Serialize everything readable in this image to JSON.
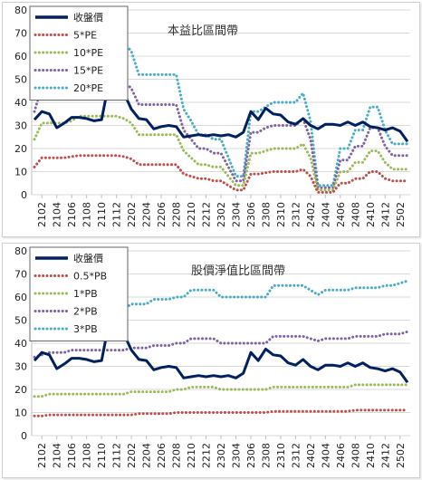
{
  "chart_data": [
    {
      "type": "line",
      "title": "本益比區間帶",
      "xlabel": "",
      "ylabel": "",
      "ylim": [
        0,
        80
      ],
      "yticks": [
        0,
        10,
        20,
        30,
        40,
        50,
        60,
        70,
        80
      ],
      "xtick_labels": [
        "2102",
        "2104",
        "2106",
        "2108",
        "2110",
        "2112",
        "2202",
        "2204",
        "2206",
        "2208",
        "2210",
        "2212",
        "2302",
        "2304",
        "2306",
        "2308",
        "2310",
        "2312",
        "2402",
        "2404",
        "2406",
        "2408",
        "2410",
        "2412",
        "2502"
      ],
      "grid": "horizontal",
      "legend_position": "top-left",
      "x": [
        "2101",
        "2102",
        "2103",
        "2104",
        "2105",
        "2106",
        "2107",
        "2108",
        "2109",
        "2110",
        "2111",
        "2112",
        "2201",
        "2202",
        "2203",
        "2204",
        "2205",
        "2206",
        "2207",
        "2208",
        "2209",
        "2210",
        "2211",
        "2212",
        "2301",
        "2302",
        "2303",
        "2304",
        "2305",
        "2306",
        "2307",
        "2308",
        "2309",
        "2310",
        "2311",
        "2312",
        "2401",
        "2402",
        "2403",
        "2404",
        "2405",
        "2406",
        "2407",
        "2408",
        "2409",
        "2410",
        "2411",
        "2412",
        "2501",
        "2502",
        "2503"
      ],
      "series": [
        {
          "name": "收盤價",
          "color": "#002060",
          "style": "solid",
          "values": [
            32.5,
            36,
            35,
            29,
            31,
            33.5,
            33.5,
            33,
            32,
            32.5,
            49,
            42,
            44,
            37,
            33,
            32.5,
            28.5,
            29.5,
            30,
            29.5,
            25,
            25.5,
            26,
            25.5,
            26,
            25.5,
            26,
            25,
            27,
            36,
            32.5,
            37.5,
            35,
            34.5,
            31.5,
            30.5,
            33,
            30,
            28.5,
            30.5,
            30.5,
            30,
            31.5,
            30,
            31.5,
            29.5,
            29,
            28,
            29,
            27.5,
            23
          ]
        },
        {
          "name": "5*PE",
          "color": "#c0504d",
          "style": "dotted",
          "values": [
            12,
            16,
            16,
            16,
            16,
            16.5,
            17,
            17,
            17,
            17,
            17,
            17,
            16.5,
            15.5,
            13,
            13,
            13,
            13,
            13,
            13,
            9,
            8,
            7,
            7,
            6,
            6,
            4,
            2,
            2,
            9,
            9,
            9.5,
            10,
            10,
            10,
            10,
            11,
            8,
            1,
            1,
            1,
            5,
            5,
            7,
            7,
            10,
            10,
            7,
            6,
            6,
            6
          ]
        },
        {
          "name": "10*PE",
          "color": "#9bbb59",
          "style": "dotted",
          "values": [
            24,
            31,
            31,
            31,
            31,
            32,
            34,
            34,
            34,
            34,
            34,
            34,
            33,
            31,
            26,
            26,
            26,
            26,
            26,
            26,
            19,
            16,
            13,
            13,
            12,
            12,
            8,
            4,
            4,
            18,
            18,
            19,
            20,
            20,
            20,
            20,
            22,
            16,
            2,
            2,
            2,
            10,
            10,
            14,
            14,
            19,
            19,
            14,
            11,
            11,
            11
          ]
        },
        {
          "name": "15*PE",
          "color": "#8064a2",
          "style": "dotted",
          "values": [
            36,
            47,
            47,
            47,
            47,
            48,
            51,
            51,
            51,
            51,
            51,
            51,
            49,
            46,
            39,
            39,
            39,
            39,
            39,
            39,
            28,
            24,
            20,
            20,
            18,
            18,
            12,
            6,
            6,
            27,
            27,
            29,
            30,
            30,
            30,
            30,
            33,
            24,
            3,
            3,
            3,
            15,
            15,
            21,
            21,
            29,
            29,
            21,
            17,
            17,
            17
          ]
        },
        {
          "name": "20*PE",
          "color": "#4bacc6",
          "style": "dotted",
          "values": [
            48,
            63,
            63,
            63,
            63,
            64,
            68,
            68,
            68,
            68,
            68,
            68,
            66,
            62,
            52,
            52,
            52,
            52,
            52,
            52,
            37,
            32,
            26,
            26,
            24,
            24,
            16,
            8,
            8,
            36,
            36,
            38,
            40,
            40,
            40,
            40,
            44,
            32,
            4,
            4,
            4,
            20,
            20,
            28,
            28,
            38,
            38,
            28,
            22,
            22,
            22
          ]
        }
      ]
    },
    {
      "type": "line",
      "title": "股價淨值比區間帶",
      "xlabel": "",
      "ylabel": "",
      "ylim": [
        0,
        80
      ],
      "yticks": [
        0,
        10,
        20,
        30,
        40,
        50,
        60,
        70,
        80
      ],
      "xtick_labels": [
        "2102",
        "2104",
        "2106",
        "2108",
        "2110",
        "2112",
        "2202",
        "2204",
        "2206",
        "2208",
        "2210",
        "2212",
        "2302",
        "2304",
        "2306",
        "2308",
        "2310",
        "2312",
        "2402",
        "2404",
        "2406",
        "2408",
        "2410",
        "2412",
        "2502"
      ],
      "grid": "horizontal",
      "legend_position": "top-left",
      "x": [
        "2101",
        "2102",
        "2103",
        "2104",
        "2105",
        "2106",
        "2107",
        "2108",
        "2109",
        "2110",
        "2111",
        "2112",
        "2201",
        "2202",
        "2203",
        "2204",
        "2205",
        "2206",
        "2207",
        "2208",
        "2209",
        "2210",
        "2211",
        "2212",
        "2301",
        "2302",
        "2303",
        "2304",
        "2305",
        "2306",
        "2307",
        "2308",
        "2309",
        "2310",
        "2311",
        "2312",
        "2401",
        "2402",
        "2403",
        "2404",
        "2405",
        "2406",
        "2407",
        "2408",
        "2409",
        "2410",
        "2411",
        "2412",
        "2501",
        "2502",
        "2503"
      ],
      "series": [
        {
          "name": "收盤價",
          "color": "#002060",
          "style": "solid",
          "values": [
            32.5,
            36,
            35,
            29,
            31,
            33.5,
            33.5,
            33,
            32,
            32.5,
            49,
            42,
            44,
            37,
            33,
            32.5,
            28.5,
            29.5,
            30,
            29.5,
            25,
            25.5,
            26,
            25.5,
            26,
            25.5,
            26,
            25,
            27,
            36,
            32.5,
            37.5,
            35,
            34.5,
            31.5,
            30.5,
            33,
            30,
            28.5,
            30.5,
            30.5,
            30,
            31.5,
            30,
            31.5,
            29.5,
            29,
            28,
            29,
            27.5,
            23
          ]
        },
        {
          "name": "0.5*PB",
          "color": "#c0504d",
          "style": "dotted",
          "values": [
            8.5,
            8.5,
            9,
            9,
            9,
            9,
            9,
            9,
            9,
            9,
            9,
            9,
            9,
            9,
            9.5,
            9.5,
            9.5,
            9.5,
            9.5,
            10,
            10,
            10,
            10,
            10,
            10,
            10,
            10,
            10,
            10,
            10,
            10,
            10,
            10.5,
            10.5,
            10.5,
            10.5,
            10.5,
            10.5,
            10.5,
            10.5,
            10.5,
            10.5,
            10.5,
            11,
            11,
            11,
            11,
            11,
            11,
            11,
            11
          ]
        },
        {
          "name": "1*PB",
          "color": "#9bbb59",
          "style": "dotted",
          "values": [
            17,
            17,
            18,
            18,
            18,
            18,
            18,
            18,
            18,
            18,
            18,
            18,
            18,
            19,
            19,
            19,
            19,
            19,
            19,
            20,
            20,
            21,
            21,
            21,
            21,
            20,
            20,
            20,
            20,
            20,
            20,
            20,
            21,
            21,
            21,
            21,
            21,
            21,
            21,
            21,
            21,
            21,
            21,
            22,
            22,
            22,
            22,
            22,
            22,
            22,
            22
          ]
        },
        {
          "name": "2*PB",
          "color": "#8064a2",
          "style": "dotted",
          "values": [
            34,
            35,
            36,
            36,
            36,
            37,
            37,
            37,
            37,
            37,
            37,
            37,
            37,
            38,
            38,
            38,
            39,
            39,
            39,
            40,
            40,
            42,
            42,
            42,
            42,
            40,
            40,
            40,
            40,
            40,
            40,
            40,
            43,
            43,
            43,
            43,
            43,
            42,
            41,
            42,
            42,
            42,
            42,
            43,
            43,
            43,
            43,
            44,
            44,
            44,
            45
          ]
        },
        {
          "name": "3*PB",
          "color": "#4bacc6",
          "style": "dotted",
          "values": [
            51,
            52,
            54,
            55,
            55,
            55,
            55,
            55,
            55,
            55,
            55,
            55,
            55,
            57,
            57,
            57,
            59,
            59,
            59,
            60,
            60,
            63,
            63,
            63,
            63,
            60,
            60,
            60,
            60,
            60,
            60,
            60,
            65,
            65,
            65,
            65,
            65,
            63,
            61,
            63,
            63,
            63,
            63,
            64,
            64,
            64,
            64,
            65,
            65,
            66,
            67
          ]
        }
      ]
    }
  ]
}
